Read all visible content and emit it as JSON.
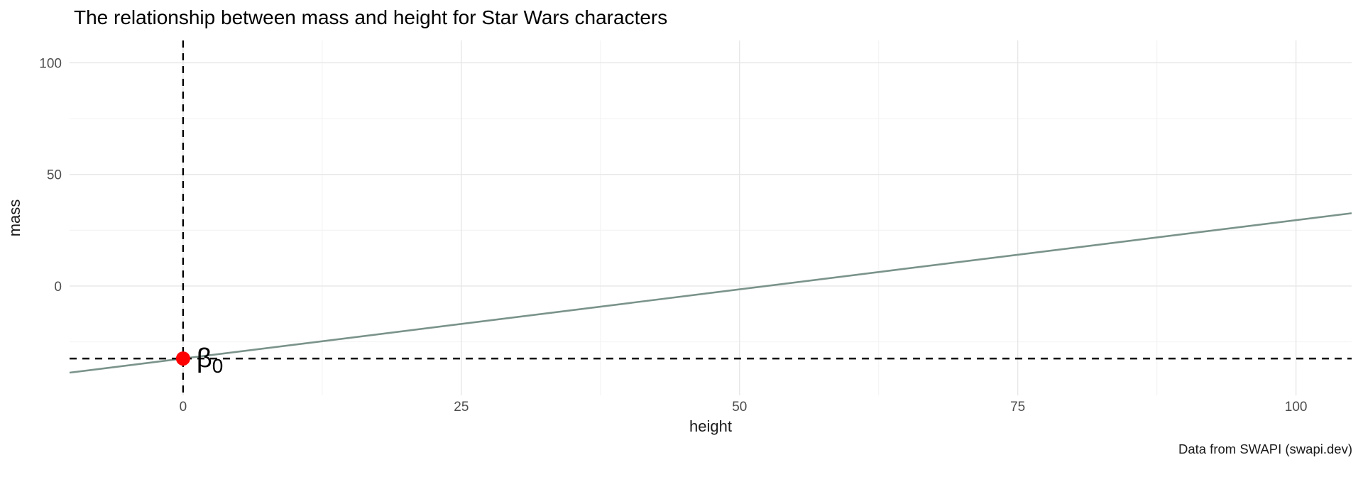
{
  "chart_data": {
    "type": "line",
    "title": "The relationship between mass and height for Star Wars characters",
    "xlabel": "height",
    "ylabel": "mass",
    "caption": "Data from SWAPI (swapi.dev)",
    "xlim": [
      -10.2,
      105
    ],
    "ylim": [
      -49,
      110
    ],
    "x_ticks": [
      0,
      25,
      50,
      75,
      100
    ],
    "y_ticks": [
      0,
      50,
      100
    ],
    "x_minor_ticks": [
      12.5,
      37.5,
      62.5,
      87.5
    ],
    "y_minor_ticks": [
      -25,
      25,
      75
    ],
    "grid": "on",
    "legend": "none",
    "regression_line": {
      "slope": 0.62,
      "intercept": -32.5,
      "color": "#7a938b"
    },
    "reference_lines": {
      "vertical_x": 0,
      "horizontal_y": -32.5,
      "style": "dashed",
      "color": "#000000"
    },
    "intercept_point": {
      "x": 0,
      "y": -32.5,
      "color": "#ff0000",
      "label": "β₀",
      "label_base": "β",
      "label_sub": "0"
    },
    "colors": {
      "background": "#ffffff",
      "grid_major": "#e7e7e7",
      "grid_minor": "#f3f3f3",
      "axis_text": "#4d4d4d",
      "axis_title_text": "#1a1a1a",
      "title_text": "#000000",
      "caption_text": "#1a1a1a"
    }
  }
}
